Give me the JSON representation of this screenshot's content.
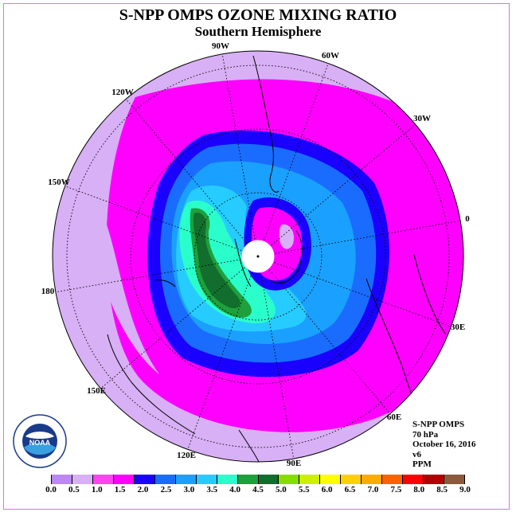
{
  "title": "S-NPP OMPS OZONE MIXING RATIO",
  "subtitle": "Southern Hemisphere",
  "longitude_labels": [
    "90W",
    "60W",
    "30W",
    "0",
    "30E",
    "60E",
    "90E",
    "120E",
    "150E",
    "180",
    "150W",
    "120W"
  ],
  "info": {
    "instrument": "S-NPP OMPS",
    "pressure": "70 hPa",
    "date": "October 16, 2016",
    "version": "v6",
    "units": "PPM"
  },
  "logo_text": "NOAA",
  "legend": {
    "colors": [
      "#bb88f5",
      "#d8b0f5",
      "#ff44ee",
      "#ff00ff",
      "#1a00ff",
      "#1a6cff",
      "#1aa0ff",
      "#26ccff",
      "#2affcc",
      "#1ea03c",
      "#116e2c",
      "#88dd00",
      "#ccf000",
      "#ffff00",
      "#ffd000",
      "#ffaa00",
      "#ff6000",
      "#ff0000",
      "#b00000",
      "#8b5a3c"
    ],
    "labels": [
      "0.0",
      "0.5",
      "1.0",
      "1.5",
      "2.0",
      "2.5",
      "3.0",
      "3.5",
      "4.0",
      "4.5",
      "5.0",
      "5.5",
      "6.0",
      "6.5",
      "7.0",
      "7.5",
      "8.0",
      "8.5",
      "9.0"
    ]
  },
  "map_colors": {
    "outer": "#d8b0f5",
    "band_magenta": "#ff00ff",
    "ring_blue": "#1a00ff",
    "ring_mid": "#1a6cff",
    "ring_light": "#1aa0ff",
    "ring_cyan": "#26ccff",
    "core_teal": "#2affcc",
    "core_green": "#1ea03c",
    "core_dark": "#116e2c",
    "pole_magenta": "#ff00ff",
    "pole_light": "#d8b0f5"
  }
}
